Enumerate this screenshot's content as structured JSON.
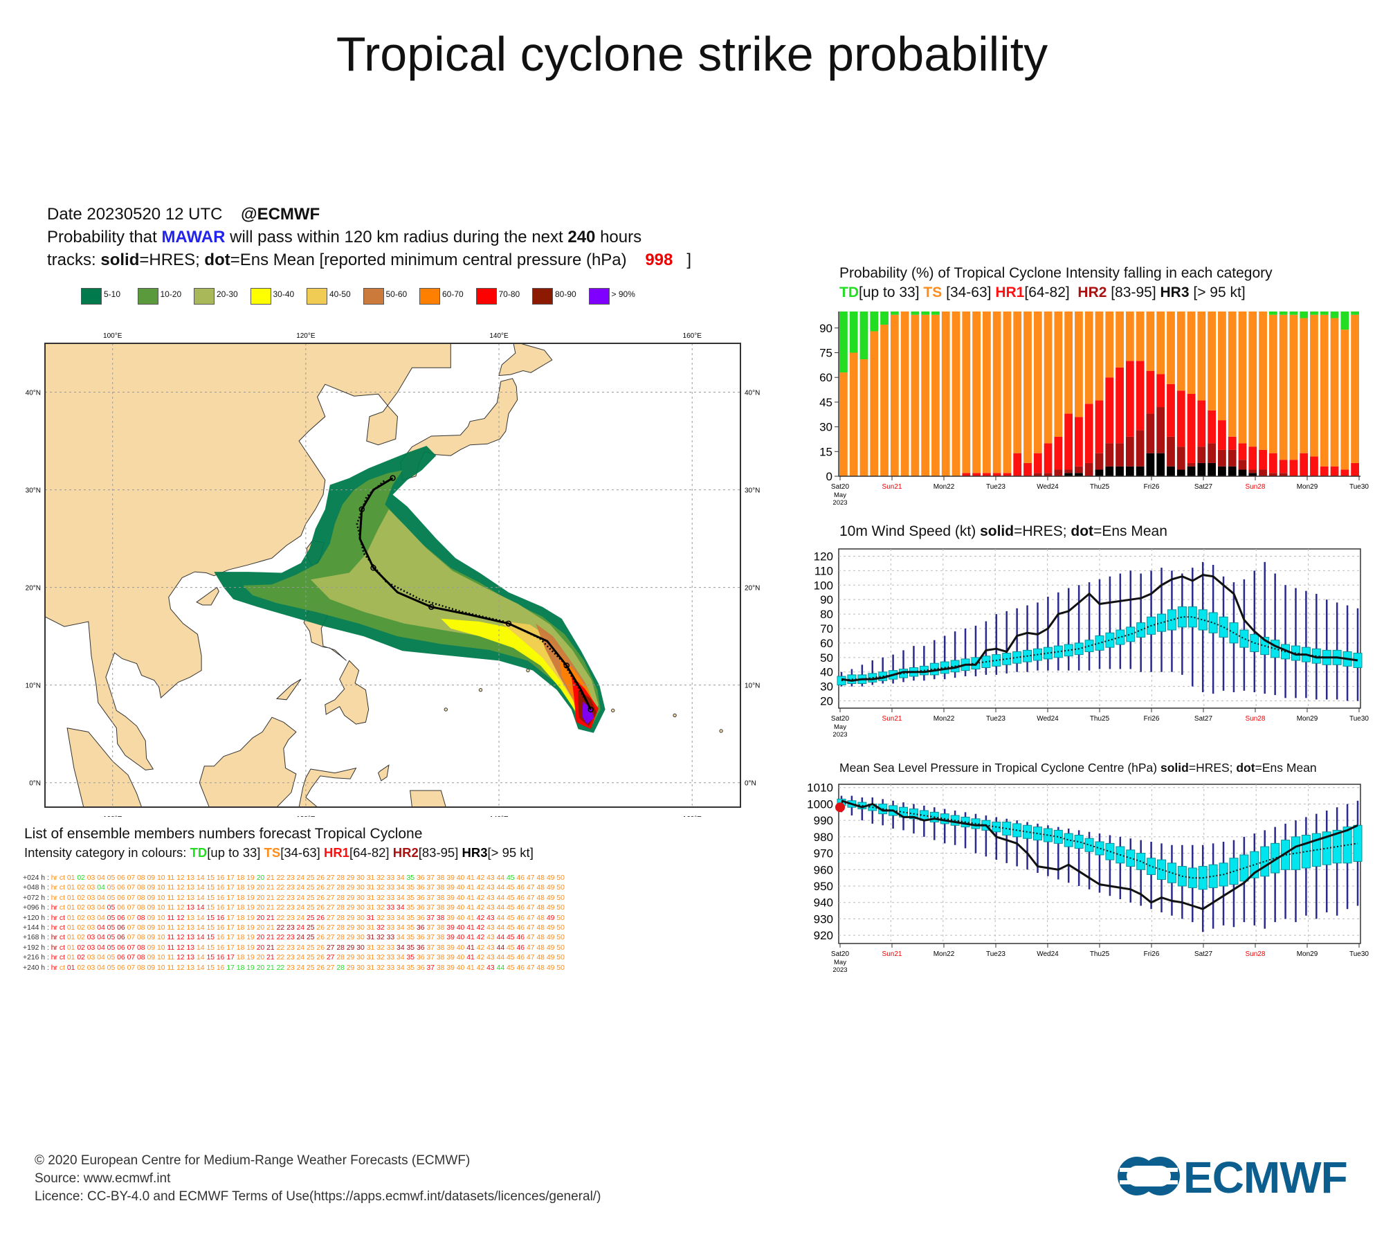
{
  "title": "Tropical cyclone strike probability",
  "header": {
    "date_line": "Date 20230520 12 UTC",
    "brand_tag": "@ECMWF",
    "prob_prefix": "Probability that",
    "storm_name": "MAWAR",
    "prob_middle": "will pass within 120 km radius during the next",
    "hours": "240",
    "prob_suffix": "hours",
    "tracks_prefix": "tracks:",
    "solid_word": "solid",
    "solid_def": "=HRES;",
    "dot_word": "dot",
    "dot_def": "=Ens Mean [reported minimum central pressure (hPa)",
    "reported_pressure": "998",
    "tracks_close": "]"
  },
  "prob_legend": [
    {
      "label": "5-10",
      "color": "#007a4d"
    },
    {
      "label": "10-20",
      "color": "#5a9a3c"
    },
    {
      "label": "20-30",
      "color": "#a9b959"
    },
    {
      "label": "30-40",
      "color": "#ffff00"
    },
    {
      "label": "40-50",
      "color": "#f0cc55"
    },
    {
      "label": "50-60",
      "color": "#cc7a3c"
    },
    {
      "label": "60-70",
      "color": "#ff8000"
    },
    {
      "label": "70-80",
      "color": "#ff0000"
    },
    {
      "label": "80-90",
      "color": "#8b1a00"
    },
    {
      "label": "> 90%",
      "color": "#8000ff"
    }
  ],
  "map": {
    "lon_labels": [
      "100°E",
      "120°E",
      "140°E",
      "160°E"
    ],
    "lat_labels": [
      "40°N",
      "30°N",
      "20°N",
      "10°N",
      "0°N"
    ],
    "lon_range": [
      93,
      165
    ],
    "lat_range": [
      -2.5,
      45
    ],
    "hres_track": [
      [
        149.5,
        7.5
      ],
      [
        148.5,
        9.5
      ],
      [
        147,
        12
      ],
      [
        145,
        14.5
      ],
      [
        141,
        16.3
      ],
      [
        137,
        17.2
      ],
      [
        133,
        18
      ],
      [
        129.5,
        19.5
      ],
      [
        127,
        22
      ],
      [
        125.6,
        25
      ],
      [
        125.8,
        28
      ],
      [
        127,
        30
      ],
      [
        129,
        31.2
      ]
    ],
    "mean_track": [
      [
        149.5,
        7.5
      ],
      [
        148.2,
        9.8
      ],
      [
        146.6,
        12.4
      ],
      [
        144.2,
        14.8
      ],
      [
        140.6,
        16.5
      ],
      [
        136.2,
        17.5
      ],
      [
        131.8,
        18.8
      ],
      [
        128.3,
        20.6
      ],
      [
        126,
        23.5
      ],
      [
        125.3,
        26.5
      ],
      [
        126.3,
        29.3
      ],
      [
        128.2,
        31
      ]
    ]
  },
  "ensemble_list": {
    "title": "List of ensemble members numbers forecast Tropical Cyclone",
    "intensity_prefix": "Intensity category in colours:",
    "cat_td": "TD",
    "cat_td_range": "[up to 33]",
    "cat_ts": "TS",
    "cat_ts_range": "[34-63]",
    "cat_hr1": "HR1",
    "cat_hr1_range": "[64-82]",
    "cat_hr2": "HR2",
    "cat_hr2_range": "[83-95]",
    "cat_hr3": "HR3",
    "cat_hr3_range": "[> 95 kt]",
    "rows": [
      {
        "lead": "+024 h :",
        "cats": "tttdtttttttttttttttttdttttttttttttttdtttttttttdttttt"
      },
      {
        "lead": "+048 h :",
        "cats": "tttttdttttttttttttttttttttttttttttttttttttttttttttt"
      },
      {
        "lead": "+072 h :",
        "cats": "ttttttttttttttttttttttttttttttttttttttttttttttttttt"
      },
      {
        "lead": "+096 h :",
        "cats": "rttttt1ttttttt11tttttttttttttttttt11tttttttttttttttt"
      },
      {
        "lead": "+120 h :",
        "cats": "r1tttt11t1tt11tt11ttt11ttt11tttt1ttttt11ttt11ttttt1"
      },
      {
        "lead": "+144 h :",
        "cats": "r1ttt112ttttttttttttttt2212tttttt1ttt2tt1111tttttttt"
      },
      {
        "lead": "+168 h :",
        "cats": "21tt1112tttt11111tttt111122ttttt222ttttt1111t111tttt"
      },
      {
        "lead": "+192 h :",
        "cats": "21t1111111tt111tttttt12ttttt2222ttt222tttt2tt2t1ttttt"
      },
      {
        "lead": "+216 h :",
        "cats": "r1t1ttt111ttt11t111ttt1ttttt1ttttttt1ttttt1ttttttt"
      },
      {
        "lead": "+240 h :",
        "cats": "rt1tttttttttttttttddddddtttttdtttttttt1ttttt1dtttt"
      }
    ],
    "member_labels": [
      "hr",
      "ct",
      "01",
      "02",
      "03",
      "04",
      "05",
      "06",
      "07",
      "08",
      "09",
      "10",
      "11",
      "12",
      "13",
      "14",
      "15",
      "16",
      "17",
      "18",
      "19",
      "20",
      "21",
      "22",
      "23",
      "24",
      "25",
      "26",
      "27",
      "28",
      "29",
      "30",
      "31",
      "32",
      "33",
      "34",
      "35",
      "36",
      "37",
      "38",
      "39",
      "40",
      "41",
      "42",
      "43",
      "44",
      "45",
      "46",
      "47",
      "48",
      "49",
      "50"
    ]
  },
  "cat_colors": {
    "td": "#22dd22",
    "ts": "#ff8c1a",
    "hr1": "#ff1010",
    "hr2": "#aa1111",
    "hr3": "#000000"
  },
  "day_labels": [
    "Sat20",
    "Sun21",
    "Mon22",
    "Tue23",
    "Wed24",
    "Thu25",
    "Fri26",
    "Sat27",
    "Sun28",
    "Mon29",
    "Tue30"
  ],
  "day_label_colors": [
    "#000",
    "#e00",
    "#000",
    "#000",
    "#000",
    "#000",
    "#000",
    "#000",
    "#e00",
    "#000",
    "#000"
  ],
  "first_day_sub": [
    "May",
    "2023"
  ],
  "intensity_chart": {
    "title": "Probability (%) of Tropical Cyclone Intensity falling in each category",
    "legend_td": "TD",
    "legend_td_range": "[up to 33]",
    "legend_ts": "TS",
    "legend_ts_range": "[34-63]",
    "legend_hr1": "HR1",
    "legend_hr1_range": "[64-82]",
    "legend_hr2": "HR2",
    "legend_hr2_range": "[83-95]",
    "legend_hr3": "HR3",
    "legend_hr3_range": "[> 95 kt]",
    "yticks": [
      0,
      15,
      30,
      45,
      60,
      75,
      90
    ],
    "ylim": [
      0,
      100
    ],
    "td": [
      37,
      25,
      29,
      12,
      8,
      2,
      0,
      2,
      2,
      2,
      0,
      0,
      0,
      0,
      0,
      0,
      0,
      0,
      0,
      0,
      0,
      0,
      0,
      0,
      0,
      0,
      0,
      0,
      0,
      0,
      0,
      0,
      0,
      0,
      0,
      0,
      0,
      0,
      0,
      0,
      0,
      0,
      2,
      2,
      2,
      4,
      2,
      2,
      4,
      11,
      2
    ],
    "hr1": [
      0,
      0,
      0,
      0,
      0,
      0,
      0,
      0,
      0,
      0,
      0,
      0,
      0,
      0,
      0,
      0,
      0,
      0,
      0,
      0,
      0,
      0,
      0,
      0,
      0,
      0,
      0,
      0,
      0,
      0,
      0,
      0,
      0,
      0,
      0,
      0,
      0,
      0,
      0,
      0,
      0,
      0,
      0,
      0,
      0,
      0,
      0,
      0,
      0,
      0,
      0
    ],
    "bars": [
      [
        0,
        0,
        0
      ],
      [
        0,
        0,
        0
      ],
      [
        0,
        0,
        0
      ],
      [
        0,
        0,
        0
      ],
      [
        0,
        0,
        0
      ],
      [
        0,
        0,
        0
      ],
      [
        0,
        0,
        0
      ],
      [
        0,
        0,
        0
      ],
      [
        0,
        0,
        0
      ],
      [
        0,
        0,
        0
      ],
      [
        0,
        0,
        0
      ],
      [
        0,
        0,
        0
      ],
      [
        2,
        0,
        0
      ],
      [
        2,
        0,
        0
      ],
      [
        2,
        0,
        0
      ],
      [
        2,
        0,
        0
      ],
      [
        2,
        0,
        0
      ],
      [
        14,
        0,
        0
      ],
      [
        8,
        0,
        0
      ],
      [
        14,
        2,
        0
      ],
      [
        20,
        2,
        0
      ],
      [
        24,
        4,
        0
      ],
      [
        38,
        4,
        2
      ],
      [
        36,
        6,
        2
      ],
      [
        44,
        8,
        0
      ],
      [
        46,
        14,
        4
      ],
      [
        60,
        20,
        6
      ],
      [
        66,
        20,
        6
      ],
      [
        70,
        24,
        6
      ],
      [
        70,
        28,
        6
      ],
      [
        64,
        38,
        14
      ],
      [
        62,
        42,
        14
      ],
      [
        56,
        24,
        6
      ],
      [
        52,
        18,
        4
      ],
      [
        50,
        8,
        6
      ],
      [
        46,
        18,
        8
      ],
      [
        40,
        20,
        8
      ],
      [
        34,
        16,
        6
      ],
      [
        24,
        16,
        6
      ],
      [
        20,
        10,
        4
      ],
      [
        18,
        4,
        2
      ],
      [
        16,
        4,
        0
      ],
      [
        14,
        2,
        0
      ],
      [
        10,
        2,
        0
      ],
      [
        10,
        0,
        0
      ],
      [
        14,
        0,
        0
      ],
      [
        12,
        0,
        0
      ],
      [
        6,
        0,
        0
      ],
      [
        6,
        0,
        0
      ],
      [
        4,
        0,
        0
      ],
      [
        8,
        0,
        0
      ]
    ]
  },
  "wind_chart": {
    "title_prefix": "10m Wind Speed (kt)",
    "solid_word": "solid",
    "solid_def": "=HRES;",
    "dot_word": "dot",
    "dot_def": "=Ens Mean",
    "yticks": [
      20,
      30,
      40,
      50,
      60,
      70,
      80,
      90,
      100,
      110,
      120
    ],
    "ylim": [
      15,
      125
    ],
    "hres": [
      35,
      34,
      35,
      35,
      36,
      38,
      40,
      40,
      40,
      41,
      42,
      43,
      45,
      45,
      55,
      56,
      54,
      65,
      67,
      66,
      70,
      80,
      82,
      88,
      94,
      87,
      88,
      89,
      90,
      91,
      94,
      100,
      104,
      106,
      103,
      107,
      106,
      100,
      94,
      76,
      68,
      62,
      58,
      55,
      52,
      52,
      50,
      50,
      50,
      49,
      48
    ],
    "ens_mean": [
      34,
      35,
      35,
      36,
      37,
      38,
      39,
      40,
      41,
      42,
      43,
      44,
      45,
      46,
      47,
      48,
      49,
      50,
      51,
      52,
      53,
      54,
      55,
      56,
      58,
      60,
      62,
      64,
      66,
      69,
      72,
      74,
      76,
      78,
      78,
      76,
      74,
      71,
      67,
      63,
      60,
      58,
      56,
      54,
      53,
      52,
      51,
      50,
      50,
      49,
      48
    ],
    "box_halfwidth": [
      3,
      3,
      3,
      3,
      3,
      3,
      3,
      3,
      3,
      4,
      4,
      4,
      4,
      4,
      4,
      4,
      4,
      4,
      4,
      4,
      4,
      4,
      4,
      4,
      4,
      5,
      5,
      5,
      5,
      5,
      6,
      6,
      7,
      7,
      7,
      7,
      7,
      7,
      7,
      6,
      6,
      6,
      6,
      5,
      5,
      5,
      5,
      5,
      5,
      5,
      5
    ],
    "whisker_low": [
      30,
      30,
      30,
      31,
      32,
      32,
      33,
      34,
      34,
      35,
      35,
      36,
      37,
      37,
      38,
      38,
      39,
      40,
      40,
      41,
      41,
      41,
      41,
      41,
      41,
      42,
      42,
      42,
      42,
      40,
      40,
      40,
      40,
      38,
      30,
      26,
      25,
      27,
      26,
      27,
      26,
      25,
      24,
      22,
      22,
      22,
      21,
      21,
      21,
      20,
      20
    ],
    "whisker_high": [
      40,
      42,
      45,
      48,
      50,
      52,
      55,
      58,
      58,
      62,
      65,
      68,
      70,
      72,
      75,
      80,
      82,
      84,
      86,
      88,
      92,
      95,
      98,
      100,
      102,
      104,
      106,
      108,
      110,
      108,
      110,
      112,
      110,
      108,
      112,
      116,
      114,
      106,
      102,
      104,
      110,
      116,
      108,
      100,
      98,
      96,
      94,
      90,
      88,
      86,
      84
    ]
  },
  "mslp_chart": {
    "title_prefix": "Mean Sea Level Pressure in Tropical Cyclone Centre (hPa)",
    "solid_word": "solid",
    "solid_def": "=HRES;",
    "dot_word": "dot",
    "dot_def": "=Ens Mean",
    "yticks": [
      920,
      930,
      940,
      950,
      960,
      970,
      980,
      990,
      1000,
      1010
    ],
    "ylim": [
      915,
      1012
    ],
    "reported": 998,
    "hres": [
      1002,
      1000,
      998,
      1000,
      996,
      996,
      992,
      992,
      990,
      991,
      990,
      989,
      988,
      987,
      987,
      980,
      978,
      976,
      970,
      962,
      961,
      960,
      963,
      959,
      955,
      951,
      950,
      949,
      948,
      945,
      940,
      943,
      941,
      940,
      938,
      936,
      940,
      944,
      948,
      952,
      958,
      962,
      966,
      970,
      974,
      976,
      978,
      980,
      982,
      984,
      987
    ],
    "ens_mean": [
      1001,
      1000,
      999,
      998,
      997,
      996,
      995,
      994,
      993,
      992,
      991,
      990,
      989,
      988,
      987,
      986,
      985,
      984,
      983,
      982,
      981,
      980,
      978,
      977,
      975,
      973,
      971,
      969,
      967,
      965,
      962,
      960,
      958,
      956,
      955,
      955,
      956,
      957,
      959,
      961,
      963,
      965,
      967,
      969,
      970,
      971,
      972,
      973,
      974,
      975,
      976
    ],
    "box_halfwidth": [
      2,
      2,
      2,
      2,
      3,
      3,
      3,
      3,
      3,
      3,
      3,
      3,
      3,
      3,
      3,
      3,
      4,
      4,
      4,
      4,
      4,
      4,
      4,
      4,
      4,
      4,
      5,
      5,
      5,
      5,
      5,
      6,
      6,
      6,
      6,
      7,
      7,
      7,
      8,
      8,
      8,
      9,
      9,
      9,
      10,
      10,
      10,
      10,
      10,
      11,
      11
    ],
    "whisker_low": [
      995,
      993,
      990,
      988,
      987,
      985,
      984,
      982,
      980,
      978,
      976,
      975,
      973,
      970,
      968,
      966,
      964,
      962,
      960,
      958,
      956,
      954,
      952,
      950,
      948,
      946,
      944,
      942,
      940,
      938,
      936,
      934,
      932,
      930,
      928,
      922,
      924,
      926,
      925,
      928,
      926,
      924,
      928,
      930,
      928,
      932,
      930,
      934,
      932,
      936,
      938
    ],
    "whisker_high": [
      1005,
      1005,
      1004,
      1004,
      1003,
      1002,
      1001,
      1000,
      999,
      998,
      997,
      996,
      995,
      994,
      993,
      992,
      991,
      990,
      989,
      988,
      987,
      986,
      985,
      984,
      983,
      982,
      981,
      980,
      979,
      978,
      977,
      976,
      975,
      975,
      975,
      975,
      976,
      977,
      978,
      980,
      982,
      984,
      986,
      988,
      990,
      992,
      994,
      996,
      998,
      1000,
      1002
    ]
  },
  "footer": {
    "line1": "© 2020 European Centre for Medium-Range Weather Forecasts (ECMWF)",
    "line2": "Source: www.ecmwf.int",
    "line3": "Licence: CC-BY-4.0 and ECMWF Terms of Use(https://apps.ecmwf.int/datasets/licences/general/)",
    "logo_text": "ECMWF",
    "logo_color": "#0b5e8e"
  }
}
